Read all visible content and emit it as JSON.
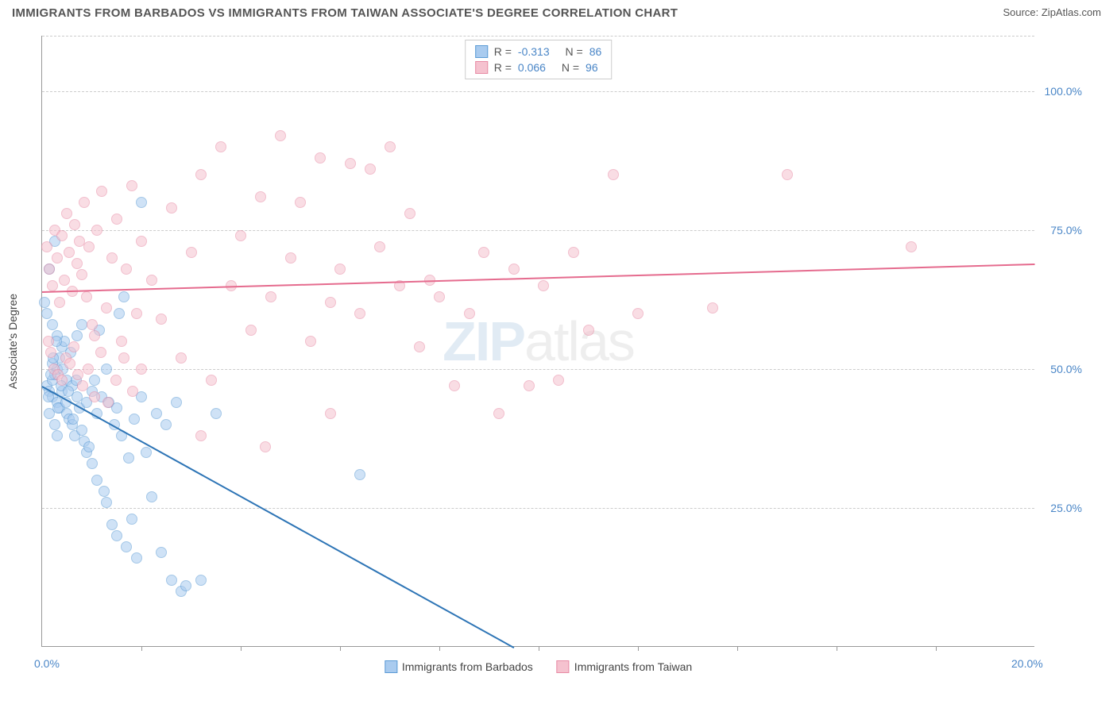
{
  "header": {
    "title": "IMMIGRANTS FROM BARBADOS VS IMMIGRANTS FROM TAIWAN ASSOCIATE'S DEGREE CORRELATION CHART",
    "source": "Source: ZipAtlas.com"
  },
  "chart": {
    "type": "scatter",
    "ylabel": "Associate's Degree",
    "xlim": [
      0,
      20
    ],
    "ylim": [
      0,
      110
    ],
    "x_tick_labels": [
      "0.0%",
      "20.0%"
    ],
    "x_tick_positions": [
      0,
      20
    ],
    "x_minor_ticks": [
      2,
      4,
      6,
      8,
      10,
      12,
      14,
      16,
      18
    ],
    "y_grid_values": [
      25,
      50,
      75,
      100,
      110
    ],
    "y_tick_labels": [
      "25.0%",
      "50.0%",
      "75.0%",
      "100.0%"
    ],
    "y_tick_values": [
      25,
      50,
      75,
      100
    ],
    "background_color": "#ffffff",
    "grid_color": "#cccccc",
    "axis_color": "#999999",
    "watermark_zip": "ZIP",
    "watermark_atlas": "atlas",
    "series": [
      {
        "name": "Immigrants from Barbados",
        "fill_color": "#a9cbef",
        "stroke_color": "#5b9bd5",
        "line_color": "#2e75b6",
        "R": "-0.313",
        "N": "86",
        "trend": {
          "x1": 0.0,
          "y1": 47,
          "x2": 9.5,
          "y2": 0
        },
        "points": [
          [
            0.1,
            47
          ],
          [
            0.15,
            46
          ],
          [
            0.2,
            48
          ],
          [
            0.2,
            45
          ],
          [
            0.25,
            49
          ],
          [
            0.3,
            50
          ],
          [
            0.3,
            44
          ],
          [
            0.35,
            52
          ],
          [
            0.35,
            43
          ],
          [
            0.4,
            54
          ],
          [
            0.4,
            46
          ],
          [
            0.45,
            55
          ],
          [
            0.5,
            48
          ],
          [
            0.5,
            42
          ],
          [
            0.55,
            41
          ],
          [
            0.6,
            47
          ],
          [
            0.6,
            40
          ],
          [
            0.65,
            38
          ],
          [
            0.7,
            56
          ],
          [
            0.7,
            45
          ],
          [
            0.75,
            43
          ],
          [
            0.8,
            39
          ],
          [
            0.8,
            58
          ],
          [
            0.85,
            37
          ],
          [
            0.9,
            44
          ],
          [
            0.9,
            35
          ],
          [
            0.95,
            36
          ],
          [
            1.0,
            46
          ],
          [
            1.0,
            33
          ],
          [
            1.05,
            48
          ],
          [
            1.1,
            42
          ],
          [
            1.1,
            30
          ],
          [
            1.15,
            57
          ],
          [
            1.2,
            45
          ],
          [
            1.25,
            28
          ],
          [
            1.3,
            50
          ],
          [
            1.3,
            26
          ],
          [
            1.35,
            44
          ],
          [
            1.4,
            22
          ],
          [
            1.45,
            40
          ],
          [
            1.5,
            43
          ],
          [
            1.5,
            20
          ],
          [
            1.55,
            60
          ],
          [
            1.6,
            38
          ],
          [
            1.65,
            63
          ],
          [
            1.7,
            18
          ],
          [
            1.75,
            34
          ],
          [
            1.8,
            23
          ],
          [
            1.85,
            41
          ],
          [
            1.9,
            16
          ],
          [
            2.0,
            45
          ],
          [
            2.0,
            80
          ],
          [
            2.1,
            35
          ],
          [
            2.2,
            27
          ],
          [
            2.3,
            42
          ],
          [
            2.4,
            17
          ],
          [
            2.5,
            40
          ],
          [
            2.6,
            12
          ],
          [
            2.7,
            44
          ],
          [
            2.8,
            10
          ],
          [
            0.05,
            62
          ],
          [
            0.1,
            60
          ],
          [
            0.15,
            68
          ],
          [
            0.2,
            58
          ],
          [
            0.25,
            73
          ],
          [
            0.3,
            56
          ],
          [
            0.15,
            42
          ],
          [
            0.2,
            51
          ],
          [
            0.25,
            40
          ],
          [
            0.3,
            38
          ],
          [
            0.12,
            45
          ],
          [
            0.18,
            49
          ],
          [
            0.22,
            52
          ],
          [
            0.28,
            55
          ],
          [
            0.32,
            43
          ],
          [
            0.38,
            47
          ],
          [
            0.42,
            50
          ],
          [
            0.48,
            44
          ],
          [
            0.52,
            46
          ],
          [
            0.58,
            53
          ],
          [
            0.62,
            41
          ],
          [
            0.68,
            48
          ],
          [
            2.9,
            11
          ],
          [
            3.2,
            12
          ],
          [
            3.5,
            42
          ],
          [
            6.4,
            31
          ]
        ]
      },
      {
        "name": "Immigrants from Taiwan",
        "fill_color": "#f5c2cf",
        "stroke_color": "#e88ba5",
        "line_color": "#e56b8e",
        "R": "0.066",
        "N": "96",
        "trend": {
          "x1": 0.0,
          "y1": 64,
          "x2": 20,
          "y2": 69
        },
        "points": [
          [
            0.1,
            72
          ],
          [
            0.15,
            68
          ],
          [
            0.2,
            65
          ],
          [
            0.25,
            75
          ],
          [
            0.3,
            70
          ],
          [
            0.35,
            62
          ],
          [
            0.4,
            74
          ],
          [
            0.45,
            66
          ],
          [
            0.5,
            78
          ],
          [
            0.55,
            71
          ],
          [
            0.6,
            64
          ],
          [
            0.65,
            76
          ],
          [
            0.7,
            69
          ],
          [
            0.75,
            73
          ],
          [
            0.8,
            67
          ],
          [
            0.85,
            80
          ],
          [
            0.9,
            63
          ],
          [
            0.95,
            72
          ],
          [
            1.0,
            58
          ],
          [
            1.05,
            56
          ],
          [
            1.1,
            75
          ],
          [
            1.2,
            82
          ],
          [
            1.3,
            61
          ],
          [
            1.4,
            70
          ],
          [
            1.5,
            77
          ],
          [
            1.6,
            55
          ],
          [
            1.7,
            68
          ],
          [
            1.8,
            83
          ],
          [
            1.9,
            60
          ],
          [
            2.0,
            73
          ],
          [
            2.2,
            66
          ],
          [
            2.4,
            59
          ],
          [
            2.6,
            79
          ],
          [
            2.8,
            52
          ],
          [
            3.0,
            71
          ],
          [
            3.2,
            85
          ],
          [
            3.4,
            48
          ],
          [
            3.6,
            90
          ],
          [
            3.8,
            65
          ],
          [
            4.0,
            74
          ],
          [
            4.2,
            57
          ],
          [
            4.4,
            81
          ],
          [
            4.6,
            63
          ],
          [
            4.8,
            92
          ],
          [
            5.0,
            70
          ],
          [
            5.2,
            80
          ],
          [
            5.4,
            55
          ],
          [
            5.6,
            88
          ],
          [
            5.8,
            62
          ],
          [
            6.0,
            68
          ],
          [
            6.2,
            87
          ],
          [
            6.4,
            60
          ],
          [
            6.6,
            86
          ],
          [
            6.8,
            72
          ],
          [
            7.0,
            90
          ],
          [
            7.2,
            65
          ],
          [
            7.4,
            78
          ],
          [
            7.6,
            54
          ],
          [
            7.8,
            66
          ],
          [
            8.0,
            63
          ],
          [
            8.3,
            47
          ],
          [
            8.6,
            60
          ],
          [
            8.9,
            71
          ],
          [
            9.2,
            42
          ],
          [
            9.5,
            68
          ],
          [
            9.8,
            47
          ],
          [
            10.1,
            65
          ],
          [
            10.4,
            48
          ],
          [
            10.7,
            71
          ],
          [
            11.0,
            57
          ],
          [
            11.5,
            85
          ],
          [
            12.0,
            60
          ],
          [
            0.12,
            55
          ],
          [
            0.18,
            53
          ],
          [
            0.24,
            50
          ],
          [
            0.32,
            49
          ],
          [
            0.4,
            48
          ],
          [
            0.48,
            52
          ],
          [
            0.56,
            51
          ],
          [
            0.64,
            54
          ],
          [
            0.72,
            49
          ],
          [
            0.82,
            47
          ],
          [
            0.92,
            50
          ],
          [
            1.05,
            45
          ],
          [
            1.18,
            53
          ],
          [
            1.32,
            44
          ],
          [
            1.48,
            48
          ],
          [
            1.65,
            52
          ],
          [
            1.82,
            46
          ],
          [
            2.0,
            50
          ],
          [
            3.2,
            38
          ],
          [
            4.5,
            36
          ],
          [
            5.8,
            42
          ],
          [
            13.5,
            61
          ],
          [
            15.0,
            85
          ],
          [
            17.5,
            72
          ]
        ]
      }
    ],
    "legend": {
      "R_label": "R =",
      "N_label": "N ="
    }
  }
}
